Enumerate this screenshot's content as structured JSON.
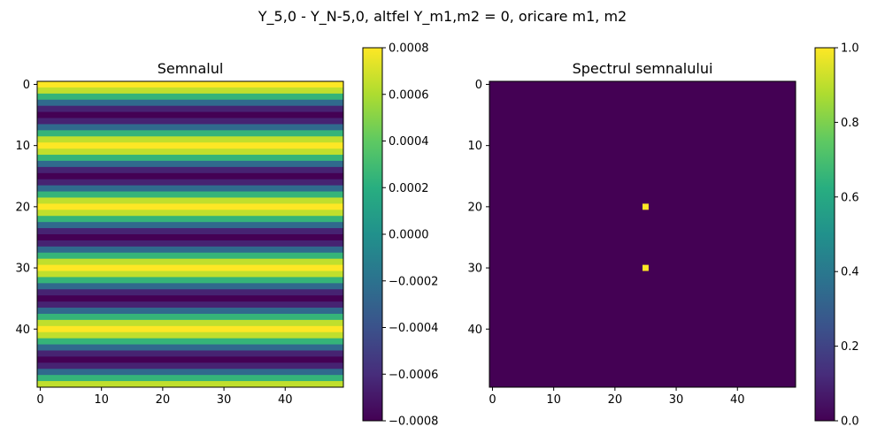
{
  "figure": {
    "suptitle": "Y_5,0 - Y_N-5,0, altfel Y_m1,m2 = 0, oricare m1, m2"
  },
  "chart_data": [
    {
      "type": "heatmap",
      "title": "Semnalul",
      "colormap": "viridis",
      "grid": false,
      "n_rows": 50,
      "n_cols": 50,
      "row_pattern": "each row constant in columns; value varies with row index, cosine of period 10",
      "period_rows": 10,
      "amplitude": 0.0008,
      "phase_start": "maximum at row 0",
      "x_ticks": [
        0,
        10,
        20,
        30,
        40
      ],
      "y_ticks": [
        0,
        10,
        20,
        30,
        40
      ],
      "colorbar": {
        "vmin": -0.0008,
        "vmax": 0.0008,
        "tick_values": [
          -0.0008,
          -0.0006,
          -0.0004,
          -0.0002,
          0.0,
          0.0002,
          0.0004,
          0.0006,
          0.0008
        ],
        "tick_labels": [
          "−0.0008",
          "−0.0006",
          "−0.0004",
          "−0.0002",
          "0.0000",
          "0.0002",
          "0.0004",
          "0.0006",
          "0.0008"
        ]
      }
    },
    {
      "type": "heatmap",
      "title": "Spectrul semnalului",
      "colormap": "viridis",
      "grid": false,
      "n_rows": 50,
      "n_cols": 50,
      "background_value": 0.0,
      "points": [
        {
          "row": 20,
          "col": 25,
          "value": 1.0
        },
        {
          "row": 30,
          "col": 25,
          "value": 1.0
        }
      ],
      "x_ticks": [
        0,
        10,
        20,
        30,
        40
      ],
      "y_ticks": [
        0,
        10,
        20,
        30,
        40
      ],
      "colorbar": {
        "vmin": 0.0,
        "vmax": 1.0,
        "tick_values": [
          0.0,
          0.2,
          0.4,
          0.6,
          0.8,
          1.0
        ],
        "tick_labels": [
          "0.0",
          "0.2",
          "0.4",
          "0.6",
          "0.8",
          "1.0"
        ]
      }
    }
  ]
}
